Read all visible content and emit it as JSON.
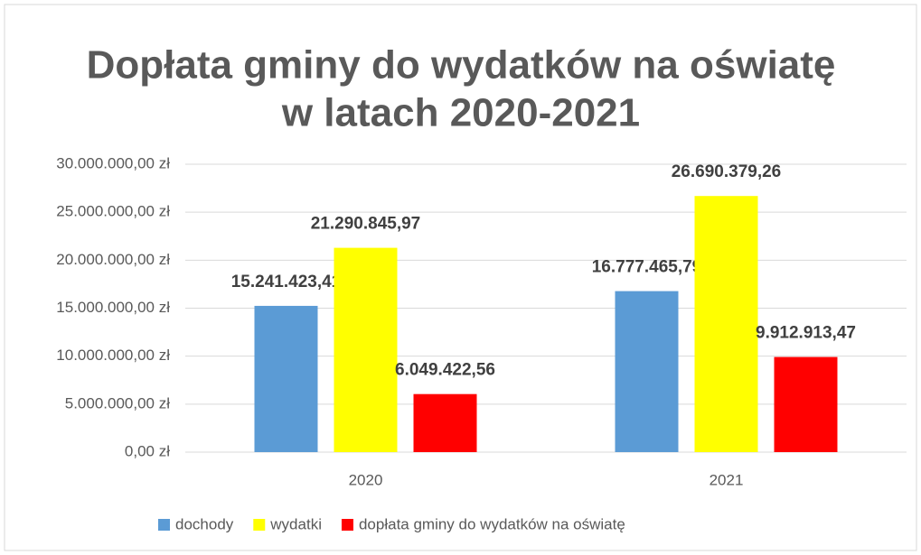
{
  "chart_data": {
    "type": "bar",
    "title": [
      "Dopłata gminy do wydatków na oświatę",
      "w latach 2020-2021"
    ],
    "categories": [
      "2020",
      "2021"
    ],
    "series": [
      {
        "name": "dochody",
        "color": "#5b9bd5",
        "values": [
          15241423.41,
          16777465.79
        ],
        "value_labels": [
          "15.241.423,41",
          "16.777.465,79"
        ]
      },
      {
        "name": "wydatki",
        "color": "#ffff00",
        "values": [
          21290845.97,
          26690379.26
        ],
        "value_labels": [
          "21.290.845,97",
          "26.690.379,26"
        ]
      },
      {
        "name": "dopłata gminy do wydatków na oświatę",
        "color": "#ff0000",
        "values": [
          6049422.56,
          9912913.47
        ],
        "value_labels": [
          "6.049.422,56",
          "9.912.913,47"
        ]
      }
    ],
    "ylim": [
      0,
      30000000
    ],
    "yticks": [
      {
        "value": 0,
        "label": "0,00 zł"
      },
      {
        "value": 5000000,
        "label": "5.000.000,00 zł"
      },
      {
        "value": 10000000,
        "label": "10.000.000,00 zł"
      },
      {
        "value": 15000000,
        "label": "15.000.000,00 zł"
      },
      {
        "value": 20000000,
        "label": "20.000.000,00 zł"
      },
      {
        "value": 25000000,
        "label": "25.000.000,00 zł"
      },
      {
        "value": 30000000,
        "label": "30.000.000,00 zł"
      }
    ],
    "grid": true,
    "legend": "bottom"
  }
}
